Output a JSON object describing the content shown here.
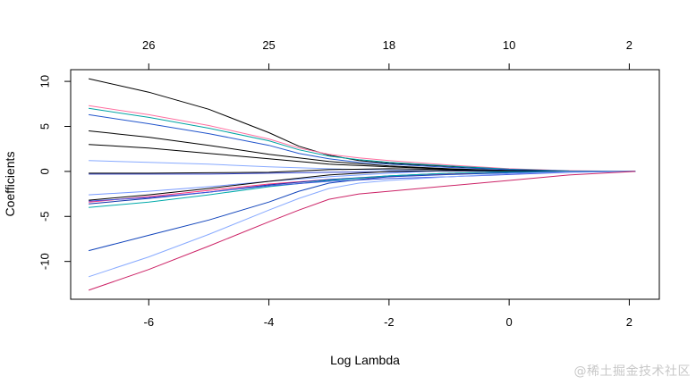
{
  "chart_data": {
    "type": "line",
    "xlabel": "Log Lambda",
    "ylabel": "Coefficients",
    "xlim": [
      -7.3,
      2.5
    ],
    "ylim": [
      -14.2,
      11.3
    ],
    "x_ticks": [
      -6,
      -4,
      -2,
      0,
      2
    ],
    "x_tick_labels": [
      "-6",
      "-4",
      "-2",
      "0",
      "2"
    ],
    "y_ticks": [
      -10,
      -5,
      0,
      5,
      10
    ],
    "y_tick_labels": [
      "-10",
      "-5",
      "0",
      "5",
      "10"
    ],
    "top_axis": {
      "tick_positions": [
        -6,
        -4,
        -2,
        0,
        2
      ],
      "tick_labels": [
        "26",
        "25",
        "18",
        "10",
        "2"
      ]
    },
    "grid": false,
    "series": [
      {
        "color": "#000000",
        "x": [
          -7,
          -6,
          -5,
          -4,
          -3.5,
          -3,
          -2.5,
          -2,
          -1,
          0,
          1,
          2.1
        ],
        "values": [
          10.3,
          8.8,
          6.9,
          4.3,
          2.8,
          1.8,
          1.2,
          0.9,
          0.55,
          0.25,
          0.05,
          0
        ]
      },
      {
        "color": "#ff6fa0",
        "x": [
          -7,
          -6,
          -5,
          -4,
          -3.5,
          -3,
          -2.5,
          -2,
          -1,
          0,
          1,
          2.1
        ],
        "values": [
          7.3,
          6.3,
          5.1,
          3.6,
          2.6,
          1.9,
          1.5,
          1.2,
          0.7,
          0.3,
          0.08,
          0
        ]
      },
      {
        "color": "#00a3a3",
        "x": [
          -7,
          -6,
          -5,
          -4,
          -3.5,
          -3,
          -2.5,
          -2,
          -1,
          0,
          1,
          2.1
        ],
        "values": [
          7.0,
          6.0,
          4.8,
          3.4,
          2.4,
          1.7,
          1.3,
          1.0,
          0.6,
          0.25,
          0.05,
          0
        ]
      },
      {
        "color": "#2255cc",
        "x": [
          -7,
          -6,
          -5,
          -4,
          -3.5,
          -3,
          -2.5,
          -2,
          -1,
          0,
          1,
          2.1
        ],
        "values": [
          6.3,
          5.3,
          4.2,
          2.9,
          2.0,
          1.4,
          1.0,
          0.8,
          0.45,
          0.2,
          0.04,
          0
        ]
      },
      {
        "color": "#000000",
        "x": [
          -7,
          -6,
          -5,
          -4,
          -3,
          -2,
          -1,
          0,
          1,
          2.1
        ],
        "values": [
          4.5,
          3.8,
          2.9,
          1.9,
          1.1,
          0.6,
          0.3,
          0.1,
          0.02,
          0
        ]
      },
      {
        "color": "#000000",
        "x": [
          -7,
          -6,
          -5,
          -4,
          -3,
          -2,
          -1,
          0,
          1,
          2.1
        ],
        "values": [
          3.0,
          2.6,
          2.0,
          1.4,
          0.8,
          0.5,
          0.25,
          0.08,
          0.02,
          0
        ]
      },
      {
        "color": "#88aaff",
        "x": [
          -7,
          -6,
          -5,
          -4,
          -3,
          -2,
          -1,
          0,
          1,
          2.1
        ],
        "values": [
          1.2,
          1.0,
          0.8,
          0.5,
          0.3,
          0.15,
          0.05,
          0.02,
          0,
          0
        ]
      },
      {
        "color": "#3344cc",
        "x": [
          -7,
          -6,
          -5,
          -4,
          -3,
          -2,
          -1,
          0,
          1,
          2.1
        ],
        "values": [
          -0.3,
          -0.3,
          -0.3,
          -0.2,
          -0.1,
          -0.05,
          0.05,
          0.02,
          0,
          0
        ]
      },
      {
        "color": "#000000",
        "x": [
          -7,
          -6,
          -5,
          -4,
          -3,
          -2,
          -1,
          0,
          1,
          2.1
        ],
        "values": [
          -0.2,
          -0.2,
          -0.15,
          -0.1,
          0.2,
          0.3,
          0.2,
          0.1,
          0.02,
          0
        ]
      },
      {
        "color": "#7799ff",
        "x": [
          -7,
          -6,
          -5,
          -4,
          -3,
          -2,
          -1,
          0,
          1,
          2.1
        ],
        "values": [
          -2.6,
          -2.2,
          -1.7,
          -1.1,
          -0.6,
          -0.2,
          0.1,
          0.05,
          0,
          0
        ]
      },
      {
        "color": "#000000",
        "x": [
          -7,
          -6,
          -5,
          -4,
          -3,
          -2,
          -1,
          0,
          1,
          2.1
        ],
        "values": [
          -3.2,
          -2.6,
          -1.9,
          -1.1,
          -0.4,
          0.0,
          0.1,
          0.05,
          0,
          0
        ]
      },
      {
        "color": "#ff3377",
        "x": [
          -7,
          -6,
          -5,
          -4,
          -3,
          -2,
          -1,
          0,
          1,
          2.1
        ],
        "values": [
          -3.4,
          -2.8,
          -2.1,
          -1.4,
          -0.9,
          -0.6,
          -0.3,
          -0.1,
          -0.02,
          0
        ]
      },
      {
        "color": "#1133aa",
        "x": [
          -7,
          -6,
          -5,
          -4,
          -3,
          -2,
          -1,
          0,
          1,
          2.1
        ],
        "values": [
          -3.6,
          -3.0,
          -2.3,
          -1.5,
          -0.9,
          -0.5,
          -0.2,
          -0.05,
          0,
          0
        ]
      },
      {
        "color": "#00aaaa",
        "x": [
          -7,
          -6,
          -5,
          -4,
          -3,
          -2,
          -1,
          0,
          1,
          2.1
        ],
        "values": [
          -4.0,
          -3.4,
          -2.6,
          -1.7,
          -1.0,
          -0.5,
          -0.2,
          -0.05,
          0,
          0
        ]
      },
      {
        "color": "#4455dd",
        "x": [
          -7,
          -6,
          -5,
          -4,
          -3,
          -2,
          -1,
          0,
          1,
          2.1
        ],
        "values": [
          -3.3,
          -2.9,
          -2.3,
          -1.6,
          -1.1,
          -0.8,
          -0.6,
          -0.35,
          -0.1,
          0
        ]
      },
      {
        "color": "#1144bb",
        "x": [
          -7,
          -6,
          -5,
          -4,
          -3.5,
          -3,
          -2.5,
          -2,
          -1,
          0,
          1,
          2.1
        ],
        "values": [
          -8.8,
          -7.1,
          -5.4,
          -3.4,
          -2.2,
          -1.3,
          -0.9,
          -0.6,
          -0.35,
          -0.15,
          -0.03,
          0
        ]
      },
      {
        "color": "#88aaff",
        "x": [
          -7,
          -6,
          -5,
          -4,
          -3.5,
          -3,
          -2.5,
          -2,
          -1,
          0,
          1,
          2.1
        ],
        "values": [
          -11.7,
          -9.5,
          -7.0,
          -4.3,
          -3.0,
          -1.9,
          -1.3,
          -1.0,
          -0.6,
          -0.25,
          -0.05,
          0
        ]
      },
      {
        "color": "#cc2266",
        "x": [
          -7,
          -6,
          -5,
          -4,
          -3.5,
          -3,
          -2.5,
          -2,
          -1,
          0,
          1,
          2.1
        ],
        "values": [
          -13.2,
          -10.9,
          -8.3,
          -5.6,
          -4.3,
          -3.1,
          -2.5,
          -2.2,
          -1.6,
          -1.0,
          -0.4,
          0
        ]
      }
    ]
  },
  "watermark": "@稀土掘金技术社区"
}
